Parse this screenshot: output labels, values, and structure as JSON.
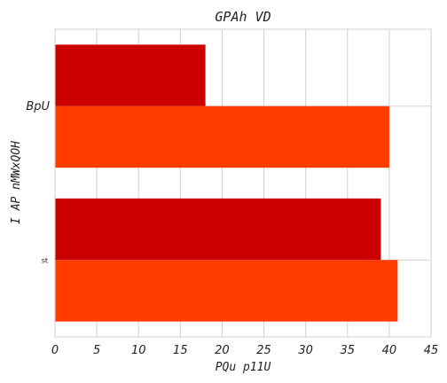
{
  "chart_data": {
    "type": "bar",
    "orientation": "horizontal",
    "title": "GPAh VD",
    "xlabel": "PQu p11U",
    "ylabel": "I AP nMWxQOH",
    "xlim": [
      0,
      45
    ],
    "xticks": [
      0,
      5,
      10,
      15,
      20,
      25,
      30,
      35,
      40,
      45
    ],
    "categories": [
      "BpU",
      "st"
    ],
    "series": [
      {
        "color": "#cc0000",
        "values": [
          18,
          39
        ]
      },
      {
        "color": "#ff3b00",
        "values": [
          40,
          41
        ]
      }
    ],
    "grid": true,
    "legend": "none"
  }
}
